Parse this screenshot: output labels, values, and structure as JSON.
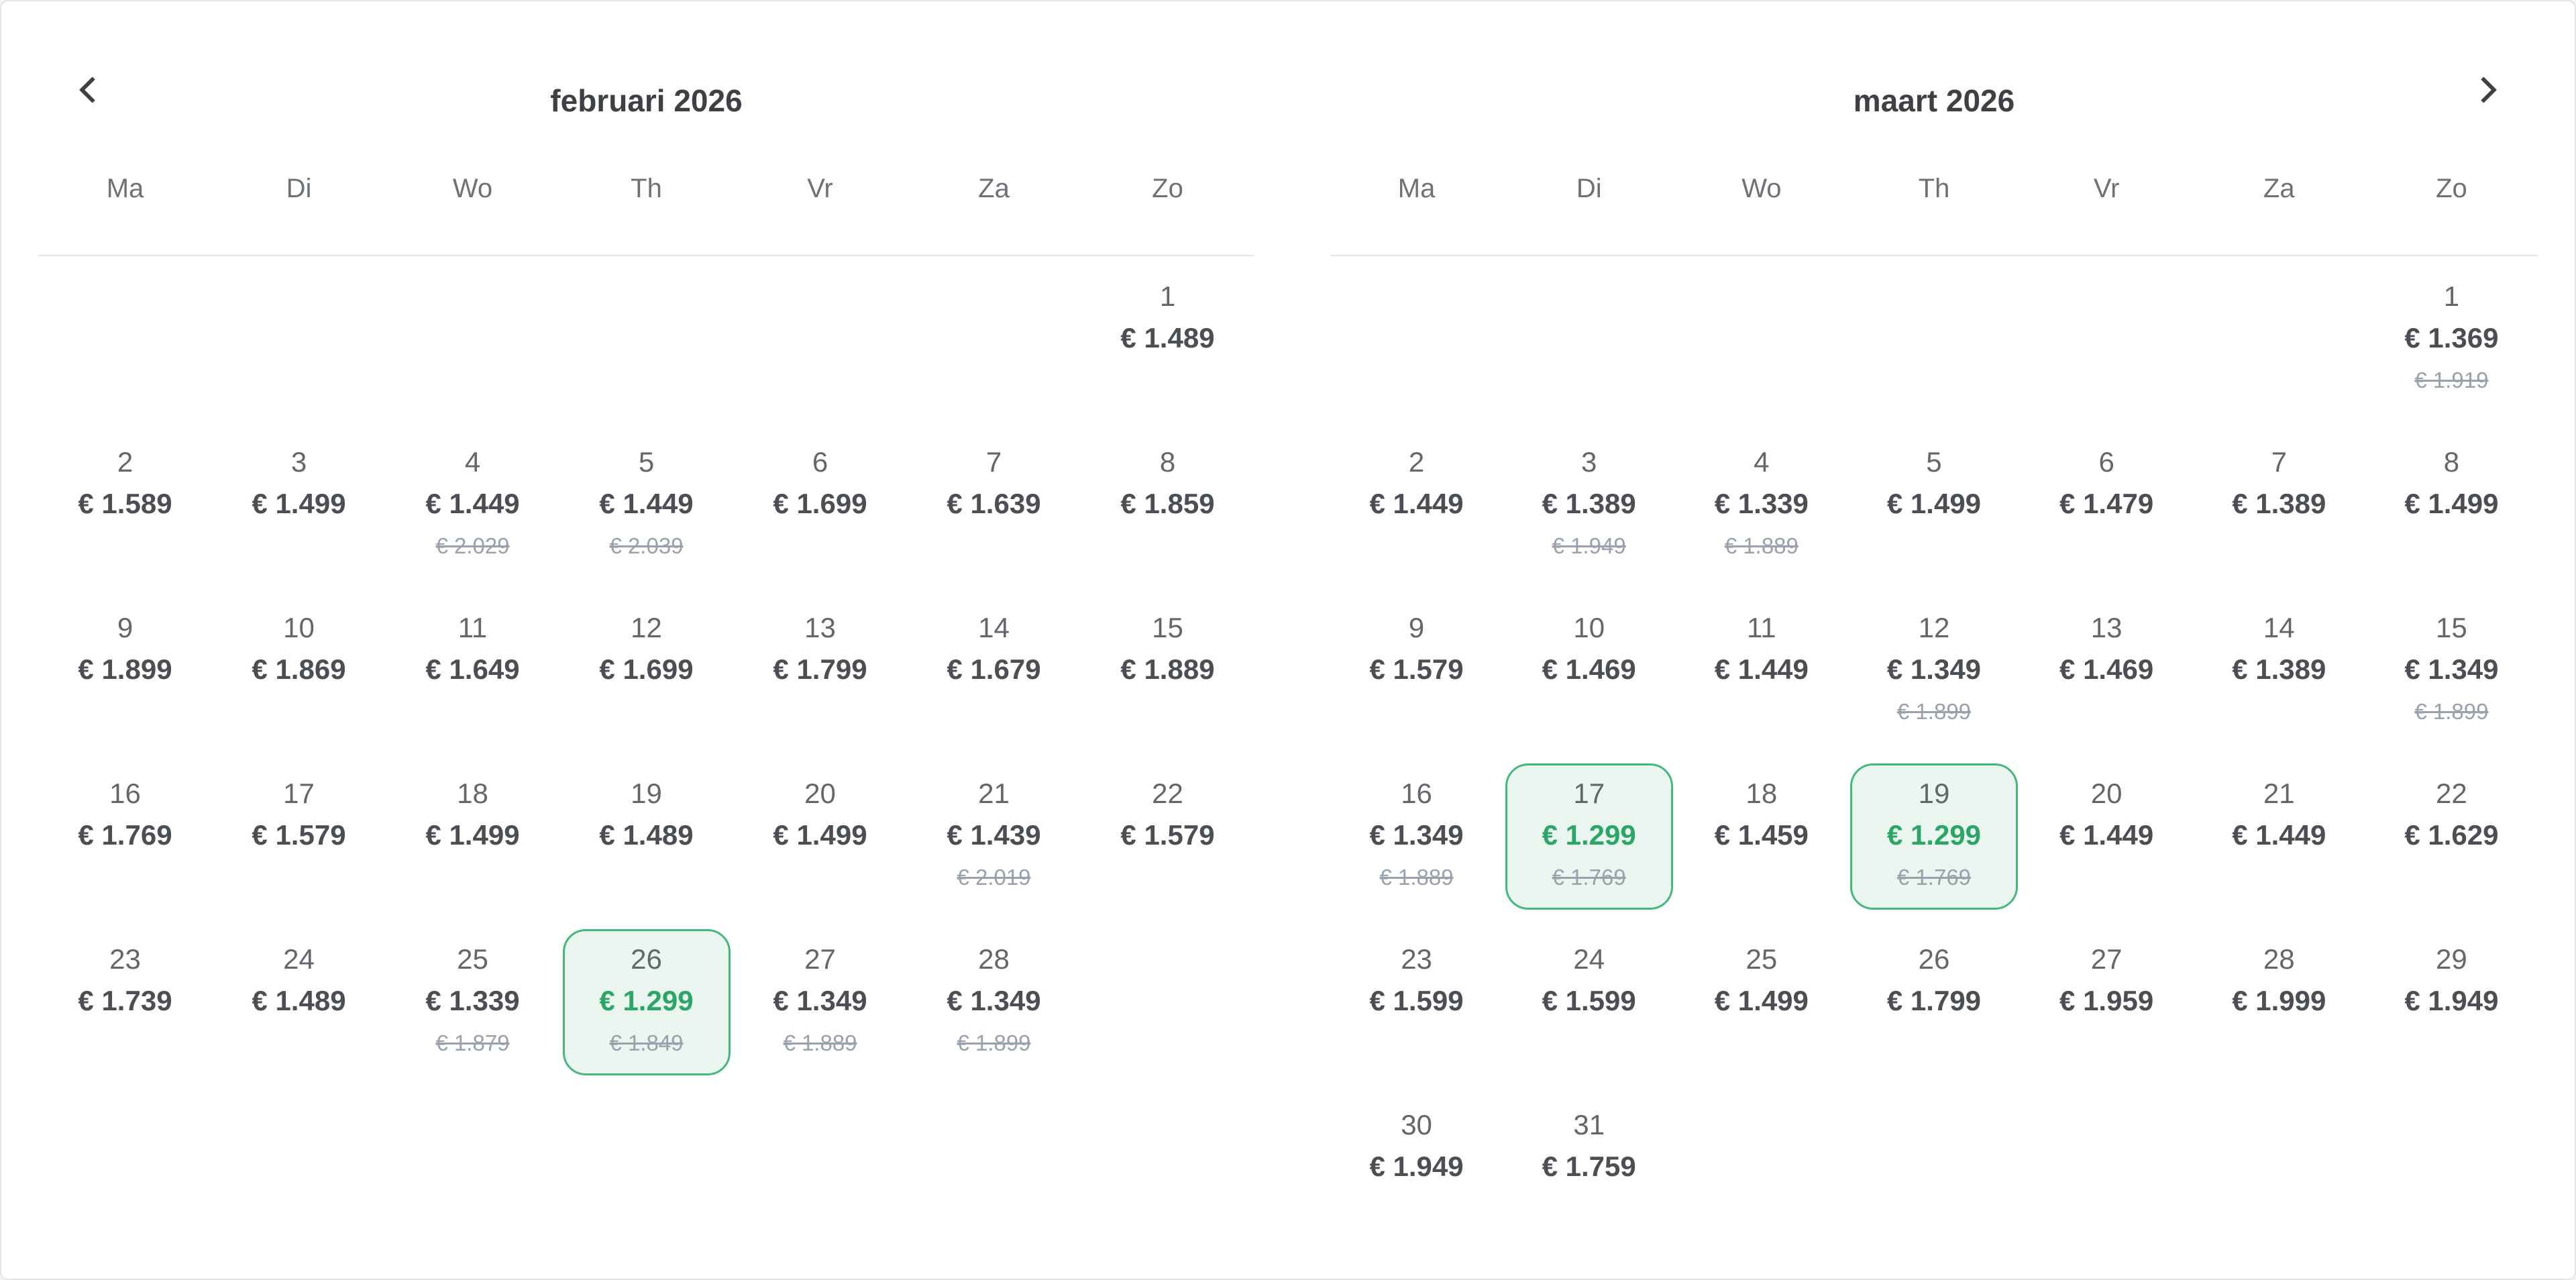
{
  "calendar": {
    "nav": {
      "prev_icon": "chevron-left",
      "next_icon": "chevron-right"
    },
    "colors": {
      "selected_border": "#43b87a",
      "selected_bg": "#ebf5ef",
      "selected_price_green": "#2aa667",
      "strike_gray": "#99a1ae",
      "price_dark": "#4b4f54"
    },
    "months": [
      {
        "title": "februari 2026",
        "weekdays": [
          "Ma",
          "Di",
          "Wo",
          "Th",
          "Vr",
          "Za",
          "Zo"
        ],
        "weeks": [
          [
            null,
            null,
            null,
            null,
            null,
            null,
            {
              "day": "1",
              "price": "€ 1.489"
            }
          ],
          [
            {
              "day": "2",
              "price": "€ 1.589"
            },
            {
              "day": "3",
              "price": "€ 1.499"
            },
            {
              "day": "4",
              "price": "€ 1.449",
              "strike": "€ 2.029"
            },
            {
              "day": "5",
              "price": "€ 1.449",
              "strike": "€ 2.039"
            },
            {
              "day": "6",
              "price": "€ 1.699"
            },
            {
              "day": "7",
              "price": "€ 1.639"
            },
            {
              "day": "8",
              "price": "€ 1.859"
            }
          ],
          [
            {
              "day": "9",
              "price": "€ 1.899"
            },
            {
              "day": "10",
              "price": "€ 1.869"
            },
            {
              "day": "11",
              "price": "€ 1.649"
            },
            {
              "day": "12",
              "price": "€ 1.699"
            },
            {
              "day": "13",
              "price": "€ 1.799"
            },
            {
              "day": "14",
              "price": "€ 1.679"
            },
            {
              "day": "15",
              "price": "€ 1.889"
            }
          ],
          [
            {
              "day": "16",
              "price": "€ 1.769"
            },
            {
              "day": "17",
              "price": "€ 1.579"
            },
            {
              "day": "18",
              "price": "€ 1.499"
            },
            {
              "day": "19",
              "price": "€ 1.489"
            },
            {
              "day": "20",
              "price": "€ 1.499"
            },
            {
              "day": "21",
              "price": "€ 1.439",
              "strike": "€ 2.019"
            },
            {
              "day": "22",
              "price": "€ 1.579"
            }
          ],
          [
            {
              "day": "23",
              "price": "€ 1.739"
            },
            {
              "day": "24",
              "price": "€ 1.489"
            },
            {
              "day": "25",
              "price": "€ 1.339",
              "strike": "€ 1.879"
            },
            {
              "day": "26",
              "price": "€ 1.299",
              "strike": "€ 1.849",
              "selected": true
            },
            {
              "day": "27",
              "price": "€ 1.349",
              "strike": "€ 1.889"
            },
            {
              "day": "28",
              "price": "€ 1.349",
              "strike": "€ 1.899"
            },
            null
          ]
        ]
      },
      {
        "title": "maart 2026",
        "weekdays": [
          "Ma",
          "Di",
          "Wo",
          "Th",
          "Vr",
          "Za",
          "Zo"
        ],
        "weeks": [
          [
            null,
            null,
            null,
            null,
            null,
            null,
            {
              "day": "1",
              "price": "€ 1.369",
              "strike": "€ 1.919"
            }
          ],
          [
            {
              "day": "2",
              "price": "€ 1.449"
            },
            {
              "day": "3",
              "price": "€ 1.389",
              "strike": "€ 1.949"
            },
            {
              "day": "4",
              "price": "€ 1.339",
              "strike": "€ 1.889"
            },
            {
              "day": "5",
              "price": "€ 1.499"
            },
            {
              "day": "6",
              "price": "€ 1.479"
            },
            {
              "day": "7",
              "price": "€ 1.389"
            },
            {
              "day": "8",
              "price": "€ 1.499"
            }
          ],
          [
            {
              "day": "9",
              "price": "€ 1.579"
            },
            {
              "day": "10",
              "price": "€ 1.469"
            },
            {
              "day": "11",
              "price": "€ 1.449"
            },
            {
              "day": "12",
              "price": "€ 1.349",
              "strike": "€ 1.899"
            },
            {
              "day": "13",
              "price": "€ 1.469"
            },
            {
              "day": "14",
              "price": "€ 1.389"
            },
            {
              "day": "15",
              "price": "€ 1.349",
              "strike": "€ 1.899"
            }
          ],
          [
            {
              "day": "16",
              "price": "€ 1.349",
              "strike": "€ 1.889"
            },
            {
              "day": "17",
              "price": "€ 1.299",
              "strike": "€ 1.769",
              "selected": true
            },
            {
              "day": "18",
              "price": "€ 1.459"
            },
            {
              "day": "19",
              "price": "€ 1.299",
              "strike": "€ 1.769",
              "selected": true
            },
            {
              "day": "20",
              "price": "€ 1.449"
            },
            {
              "day": "21",
              "price": "€ 1.449"
            },
            {
              "day": "22",
              "price": "€ 1.629"
            }
          ],
          [
            {
              "day": "23",
              "price": "€ 1.599"
            },
            {
              "day": "24",
              "price": "€ 1.599"
            },
            {
              "day": "25",
              "price": "€ 1.499"
            },
            {
              "day": "26",
              "price": "€ 1.799"
            },
            {
              "day": "27",
              "price": "€ 1.959"
            },
            {
              "day": "28",
              "price": "€ 1.999"
            },
            {
              "day": "29",
              "price": "€ 1.949"
            }
          ],
          [
            {
              "day": "30",
              "price": "€ 1.949"
            },
            {
              "day": "31",
              "price": "€ 1.759"
            },
            null,
            null,
            null,
            null,
            null
          ]
        ]
      }
    ]
  }
}
